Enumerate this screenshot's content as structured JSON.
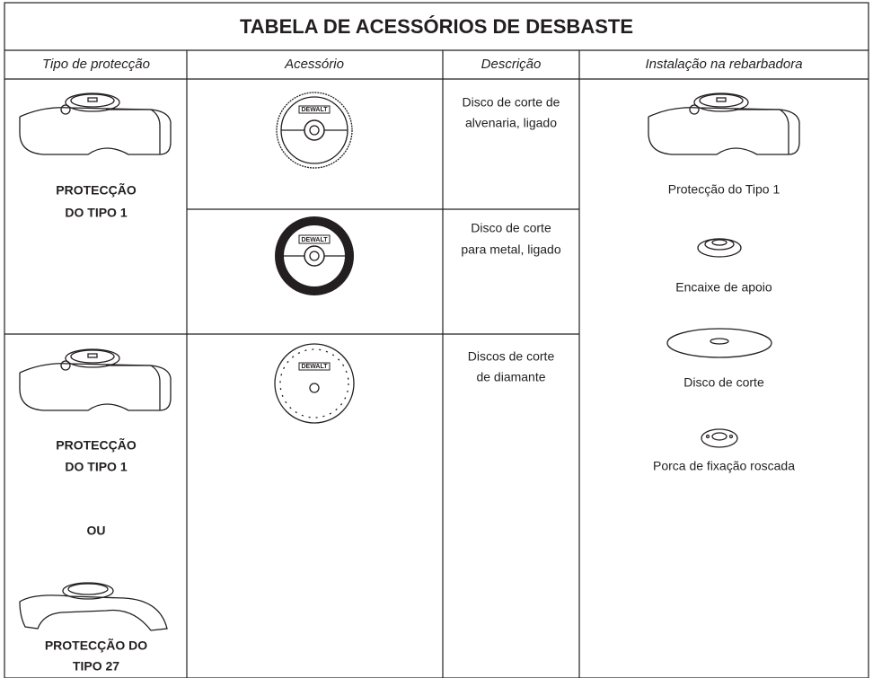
{
  "header": {
    "title": "TABELA DE ACESSÓRIOS DE DESBASTE"
  },
  "table": {
    "headers": [
      "Tipo de protecção",
      "Acessório",
      "Descrição",
      "Instalação na rebarbadora"
    ],
    "guard_cells": [
      {
        "lines": [
          "PROTECÇÃO",
          "DO TIPO 1"
        ]
      },
      {
        "lines": [
          "PROTECÇÃO",
          "DO TIPO 1"
        ],
        "or": "OU",
        "lines_alt": [
          "PROTECÇÃO DO",
          "TIPO 27"
        ]
      }
    ],
    "descriptions": [
      [
        "Disco de corte de",
        "alvenaria, ligado"
      ],
      [
        "Disco de corte",
        "para metal, ligado"
      ],
      [
        "Discos de corte",
        "de diamante"
      ]
    ],
    "installation": [
      "Protecção do Tipo 1",
      "Encaixe de apoio",
      "Disco de corte",
      "Porca de fixação roscada"
    ]
  },
  "illustrations": {
    "logo": "DEWALT"
  }
}
